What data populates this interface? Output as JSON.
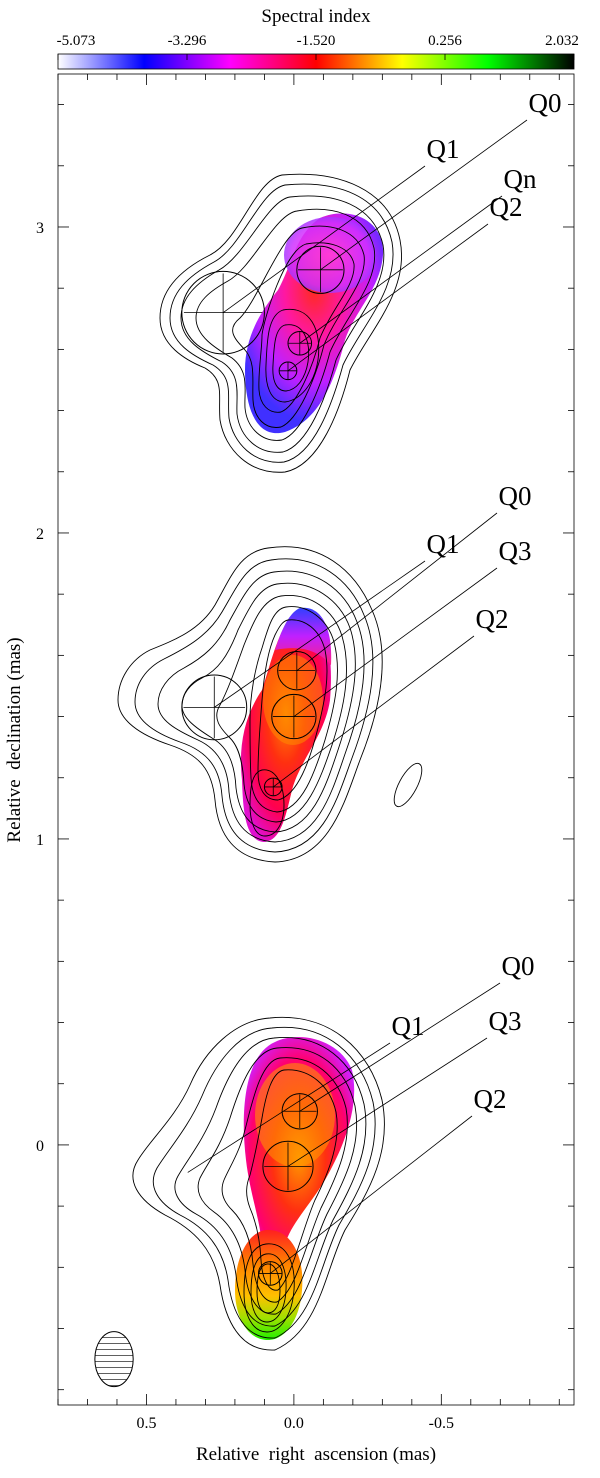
{
  "chart_data": {
    "type": "contour-map",
    "colorbar": {
      "title": "Spectral index",
      "tick_labels": [
        "-5.073",
        "-3.296",
        "-1.520",
        "0.256",
        "2.032"
      ],
      "range": [
        -5.073,
        2.032
      ],
      "colors": [
        "#ffffff",
        "#0000ff",
        "#ff00ff",
        "#ff0000",
        "#ffff00",
        "#00ff00",
        "#000000"
      ]
    },
    "xlabel": "Relative  right  ascension (mas)",
    "ylabel": "Relative  declination (mas)",
    "xlim": [
      0.8,
      -0.95
    ],
    "ylim": [
      -0.85,
      3.5
    ],
    "x_ticks": [
      "0.5",
      "0.0",
      "-0.5"
    ],
    "y_ticks": [
      "0",
      "1",
      "2",
      "3"
    ],
    "panels": [
      {
        "id": "top",
        "components": [
          {
            "name": "Q0",
            "x": -0.09,
            "y": 2.86,
            "size": 0.16
          },
          {
            "name": "Q1",
            "x": 0.24,
            "y": 2.72,
            "size": 0.28
          },
          {
            "name": "Qn",
            "x": -0.02,
            "y": 2.62,
            "size": 0.08
          },
          {
            "name": "Q2",
            "x": 0.02,
            "y": 2.53,
            "size": 0.06
          }
        ],
        "label_order": [
          "Q0",
          "Q1",
          "Qn",
          "Q2"
        ]
      },
      {
        "id": "middle",
        "components": [
          {
            "name": "Q0",
            "x": -0.01,
            "y": 1.55,
            "size": 0.13
          },
          {
            "name": "Q1",
            "x": 0.27,
            "y": 1.43,
            "size": 0.22
          },
          {
            "name": "Q3",
            "x": 0.0,
            "y": 1.4,
            "size": 0.15
          },
          {
            "name": "Q2",
            "x": 0.07,
            "y": 1.17,
            "size": 0.06
          }
        ],
        "label_order": [
          "Q0",
          "Q1",
          "Q3",
          "Q2"
        ]
      },
      {
        "id": "bottom",
        "components": [
          {
            "name": "Q0",
            "x": -0.02,
            "y": 0.11,
            "size": 0.12
          },
          {
            "name": "Q1",
            "x": 0.36,
            "y": -0.09,
            "size": 0.0
          },
          {
            "name": "Q3",
            "x": 0.02,
            "y": -0.07,
            "size": 0.17
          },
          {
            "name": "Q2",
            "x": 0.08,
            "y": -0.42,
            "size": 0.08
          }
        ],
        "label_order": [
          "Q0",
          "Q1",
          "Q3",
          "Q2"
        ]
      }
    ],
    "beam": {
      "x": 0.61,
      "y": -0.7,
      "major": 0.18,
      "minor": 0.13
    },
    "grid": false,
    "legend": "none"
  }
}
